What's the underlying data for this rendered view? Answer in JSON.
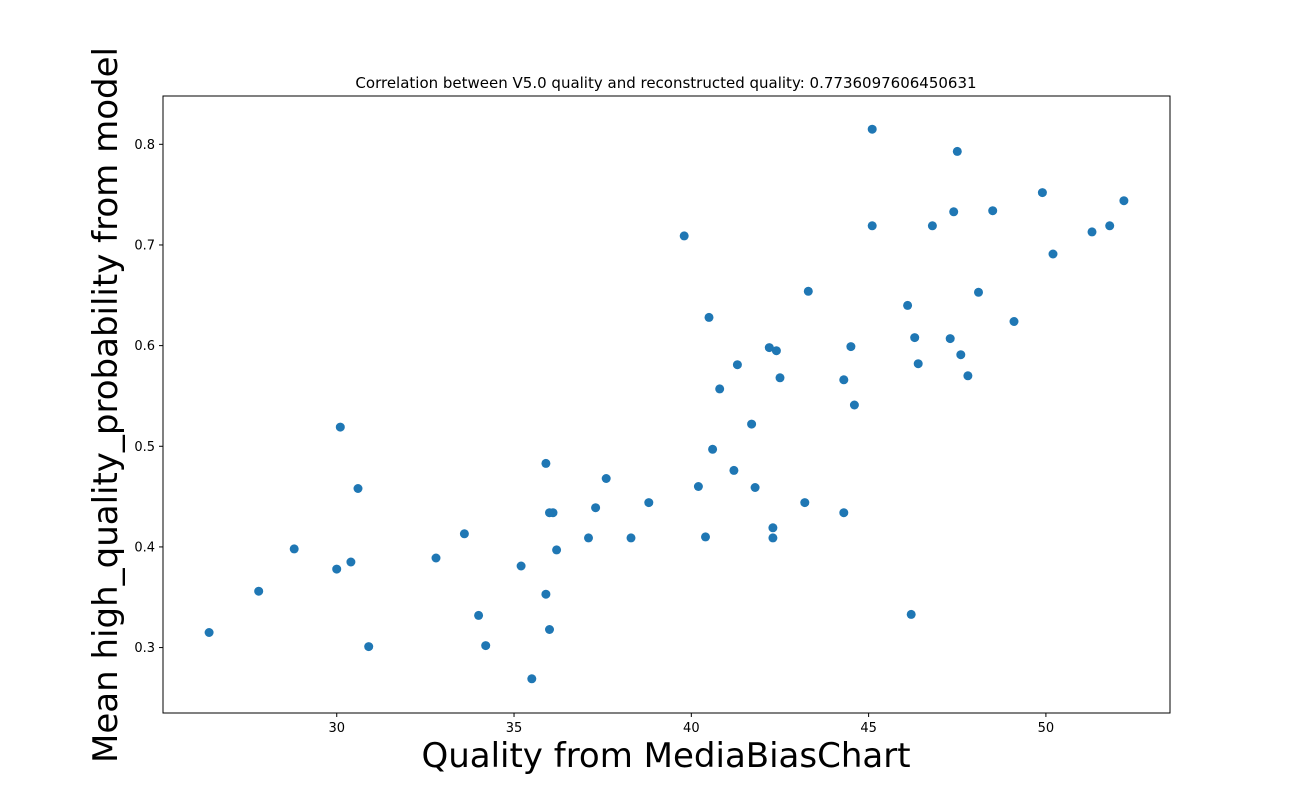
{
  "chart_data": {
    "type": "scatter",
    "title": "Correlation between V5.0 quality and reconstructed quality: 0.7736097606450631",
    "xlabel": "Quality from MediaBiasChart",
    "ylabel": "Mean high_quality_probability from model",
    "xlim": [
      25.1,
      53.5
    ],
    "ylim": [
      0.235,
      0.848
    ],
    "xticks": [
      30,
      35,
      40,
      45,
      50
    ],
    "yticks": [
      0.3,
      0.4,
      0.5,
      0.6,
      0.7,
      0.8
    ],
    "marker_color": "#1f77b4",
    "grid": false,
    "x": [
      26.4,
      27.8,
      28.8,
      30.0,
      30.1,
      30.4,
      30.6,
      30.9,
      32.8,
      33.6,
      34.0,
      34.2,
      35.2,
      35.5,
      35.9,
      35.9,
      36.0,
      36.1,
      36.0,
      36.2,
      37.1,
      37.3,
      37.6,
      38.3,
      38.8,
      39.8,
      40.2,
      40.4,
      40.5,
      40.6,
      40.8,
      41.2,
      41.3,
      41.7,
      41.8,
      42.2,
      42.3,
      42.3,
      42.4,
      42.5,
      43.2,
      43.3,
      44.3,
      44.3,
      44.5,
      44.6,
      45.1,
      45.1,
      46.1,
      46.2,
      46.3,
      46.4,
      46.8,
      47.3,
      47.4,
      47.5,
      47.6,
      47.8,
      48.1,
      48.5,
      49.1,
      49.9,
      50.2,
      51.3,
      51.8,
      52.2
    ],
    "y": [
      0.315,
      0.356,
      0.398,
      0.378,
      0.519,
      0.385,
      0.458,
      0.301,
      0.389,
      0.413,
      0.332,
      0.302,
      0.381,
      0.269,
      0.353,
      0.483,
      0.318,
      0.434,
      0.434,
      0.397,
      0.409,
      0.439,
      0.468,
      0.409,
      0.444,
      0.709,
      0.46,
      0.41,
      0.628,
      0.497,
      0.557,
      0.476,
      0.581,
      0.522,
      0.459,
      0.598,
      0.409,
      0.419,
      0.595,
      0.568,
      0.444,
      0.654,
      0.566,
      0.434,
      0.599,
      0.541,
      0.815,
      0.719,
      0.64,
      0.333,
      0.608,
      0.582,
      0.719,
      0.607,
      0.733,
      0.793,
      0.591,
      0.57,
      0.653,
      0.734,
      0.624,
      0.752,
      0.691,
      0.713,
      0.719,
      0.744
    ]
  }
}
